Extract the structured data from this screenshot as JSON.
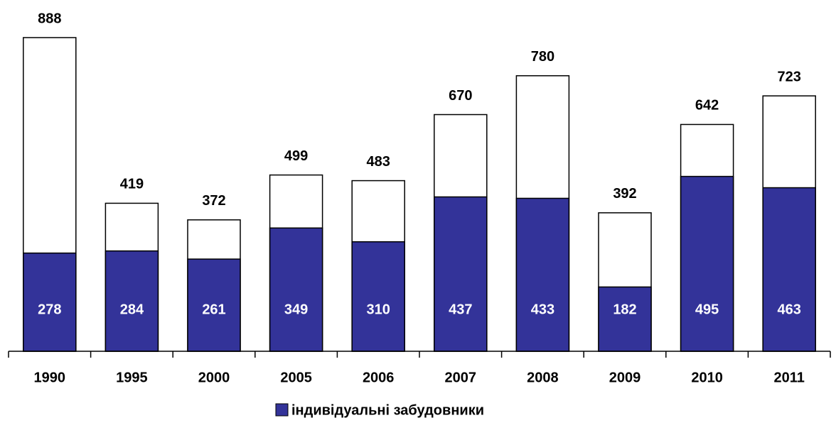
{
  "chart_data": {
    "type": "bar",
    "overlap": true,
    "categories": [
      "1990",
      "1995",
      "2000",
      "2005",
      "2006",
      "2007",
      "2008",
      "2009",
      "2010",
      "2011"
    ],
    "series": [
      {
        "color": "#ffffff",
        "values": [
          888,
          419,
          372,
          499,
          483,
          670,
          780,
          392,
          642,
          723
        ]
      },
      {
        "name": "індивідуальні забудовники",
        "color": "#333399",
        "values": [
          278,
          284,
          261,
          349,
          310,
          437,
          433,
          182,
          495,
          463
        ]
      }
    ],
    "ylim": [
      0,
      900
    ],
    "legend": "bottom"
  }
}
